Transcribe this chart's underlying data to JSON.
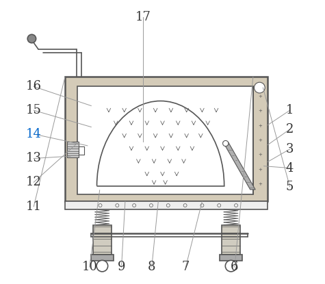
{
  "bg_color": "#ffffff",
  "line_color": "#555555",
  "label_color_default": "#333333",
  "label_color_14": "#0066cc",
  "label_fontsize": 13
}
